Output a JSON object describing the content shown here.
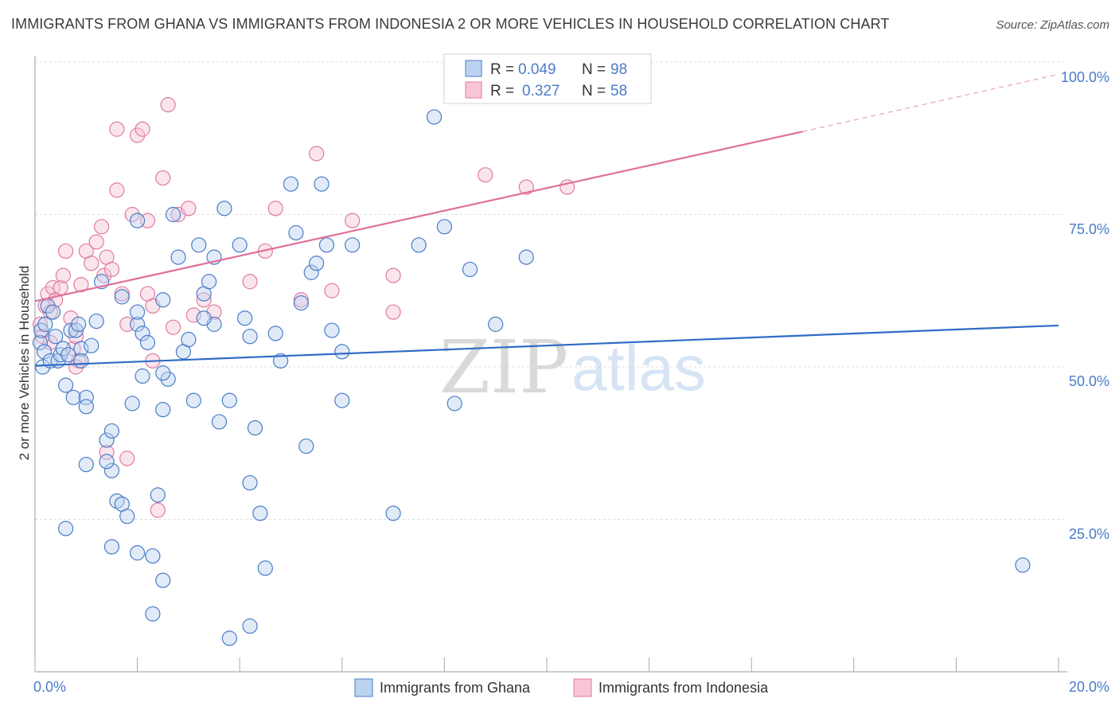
{
  "title": "IMMIGRANTS FROM GHANA VS IMMIGRANTS FROM INDONESIA 2 OR MORE VEHICLES IN HOUSEHOLD CORRELATION CHART",
  "source": "Source: ZipAtlas.com",
  "colors": {
    "ghana": "#4a7cc7",
    "indonesia": "#e07ba0",
    "ghana_fill": "#bcd3f0",
    "indonesia_fill": "#f7c5d6"
  },
  "chart_data": {
    "type": "scatter",
    "xlabel": "",
    "ylabel": "2 or more Vehicles in Household",
    "xlim": [
      0,
      20
    ],
    "ylim": [
      0,
      100
    ],
    "x_tick_labels": [
      "0.0%",
      "20.0%"
    ],
    "y_tick_labels": [
      "25.0%",
      "50.0%",
      "75.0%",
      "100.0%"
    ],
    "watermark": [
      "ZIP",
      "atlas"
    ],
    "legend": [
      {
        "r_label": "R =",
        "r_value": "0.049",
        "n_label": "N =",
        "n_value": "98"
      },
      {
        "r_label": "R =",
        "r_value": "0.327",
        "n_label": "N =",
        "n_value": "58"
      }
    ],
    "series": [
      {
        "name": "Immigrants from Ghana",
        "trend": {
          "x0": 0,
          "y0": 50.2,
          "x1": 20,
          "y1": 56.8
        },
        "points": [
          [
            0.1,
            54
          ],
          [
            0.12,
            56
          ],
          [
            0.15,
            50
          ],
          [
            0.18,
            52.5
          ],
          [
            0.2,
            57
          ],
          [
            0.25,
            60
          ],
          [
            0.3,
            51
          ],
          [
            0.35,
            59
          ],
          [
            0.4,
            55
          ],
          [
            0.45,
            51
          ],
          [
            0.5,
            52
          ],
          [
            0.55,
            53
          ],
          [
            0.6,
            47
          ],
          [
            0.65,
            52
          ],
          [
            0.7,
            56
          ],
          [
            0.75,
            45
          ],
          [
            0.8,
            56
          ],
          [
            0.85,
            57
          ],
          [
            0.9,
            53
          ],
          [
            1.0,
            45
          ],
          [
            1.0,
            34
          ],
          [
            1.1,
            53.5
          ],
          [
            1.2,
            57.5
          ],
          [
            1.4,
            38
          ],
          [
            1.5,
            39.5
          ],
          [
            1.5,
            33
          ],
          [
            1.6,
            28
          ],
          [
            1.7,
            27.5
          ],
          [
            1.7,
            61.5
          ],
          [
            1.8,
            25.5
          ],
          [
            1.9,
            44
          ],
          [
            2.0,
            57
          ],
          [
            2.0,
            59
          ],
          [
            2.1,
            55.5
          ],
          [
            2.1,
            48.5
          ],
          [
            2.2,
            54
          ],
          [
            2.3,
            19
          ],
          [
            2.4,
            29
          ],
          [
            2.5,
            43
          ],
          [
            2.6,
            48
          ],
          [
            2.7,
            75
          ],
          [
            2.8,
            68
          ],
          [
            2.9,
            52.5
          ],
          [
            3.0,
            54.5
          ],
          [
            3.1,
            44.5
          ],
          [
            3.2,
            70
          ],
          [
            3.3,
            62
          ],
          [
            3.4,
            64
          ],
          [
            3.5,
            57
          ],
          [
            3.6,
            41
          ],
          [
            3.7,
            76
          ],
          [
            3.8,
            44.5
          ],
          [
            4.0,
            70
          ],
          [
            4.1,
            58
          ],
          [
            4.2,
            31
          ],
          [
            4.3,
            40
          ],
          [
            4.4,
            26
          ],
          [
            4.5,
            17
          ],
          [
            4.7,
            55.5
          ],
          [
            4.8,
            51
          ],
          [
            5.0,
            80
          ],
          [
            5.1,
            72
          ],
          [
            5.2,
            60.5
          ],
          [
            5.3,
            37
          ],
          [
            5.4,
            65.5
          ],
          [
            5.5,
            67
          ],
          [
            5.6,
            80
          ],
          [
            5.7,
            70
          ],
          [
            5.8,
            56
          ],
          [
            6.0,
            52.5
          ],
          [
            6.2,
            70
          ],
          [
            7.0,
            26
          ],
          [
            7.5,
            70
          ],
          [
            7.8,
            91
          ],
          [
            8.0,
            73
          ],
          [
            8.2,
            44
          ],
          [
            8.5,
            66
          ],
          [
            9.0,
            57
          ],
          [
            9.6,
            68
          ],
          [
            19.3,
            17.5
          ],
          [
            0.6,
            23.5
          ],
          [
            1.0,
            43.5
          ],
          [
            1.5,
            20.5
          ],
          [
            2.0,
            19.5
          ],
          [
            3.5,
            68
          ],
          [
            2.3,
            9.5
          ],
          [
            2.5,
            15
          ],
          [
            3.8,
            5.5
          ],
          [
            4.2,
            7.5
          ],
          [
            1.4,
            34.5
          ],
          [
            0.9,
            51
          ],
          [
            2.5,
            61
          ],
          [
            3.3,
            58
          ],
          [
            4.2,
            55
          ],
          [
            6.0,
            44.5
          ],
          [
            1.3,
            64
          ],
          [
            2.0,
            74
          ],
          [
            2.5,
            49
          ]
        ]
      },
      {
        "name": "Immigrants from Indonesia",
        "trend": {
          "x0": 0,
          "y0": 60.8,
          "x1": 15,
          "y1": 88.6,
          "dash_x1": 20,
          "dash_y1": 98.0
        },
        "points": [
          [
            0.1,
            57
          ],
          [
            0.15,
            55
          ],
          [
            0.2,
            60
          ],
          [
            0.25,
            62
          ],
          [
            0.3,
            59
          ],
          [
            0.35,
            63
          ],
          [
            0.4,
            61
          ],
          [
            0.5,
            63
          ],
          [
            0.55,
            65
          ],
          [
            0.6,
            69
          ],
          [
            0.7,
            58
          ],
          [
            0.75,
            53
          ],
          [
            0.8,
            55
          ],
          [
            0.85,
            51
          ],
          [
            0.9,
            63.5
          ],
          [
            1.0,
            69
          ],
          [
            1.1,
            67
          ],
          [
            1.2,
            70.5
          ],
          [
            1.3,
            73
          ],
          [
            1.35,
            65
          ],
          [
            1.4,
            68
          ],
          [
            1.5,
            66
          ],
          [
            1.6,
            79
          ],
          [
            1.6,
            89
          ],
          [
            1.7,
            62
          ],
          [
            1.8,
            57
          ],
          [
            1.8,
            35
          ],
          [
            1.9,
            75
          ],
          [
            2.0,
            88
          ],
          [
            2.1,
            89
          ],
          [
            2.2,
            74
          ],
          [
            2.3,
            60
          ],
          [
            2.3,
            51
          ],
          [
            2.4,
            26.5
          ],
          [
            2.5,
            81
          ],
          [
            2.6,
            93
          ],
          [
            2.7,
            56.5
          ],
          [
            2.8,
            75
          ],
          [
            3.0,
            76
          ],
          [
            3.1,
            58.5
          ],
          [
            3.3,
            61
          ],
          [
            3.5,
            59
          ],
          [
            4.2,
            64
          ],
          [
            4.5,
            69
          ],
          [
            4.7,
            76
          ],
          [
            5.2,
            61
          ],
          [
            5.5,
            85
          ],
          [
            5.8,
            62.5
          ],
          [
            6.2,
            74
          ],
          [
            7.0,
            65
          ],
          [
            7.0,
            59
          ],
          [
            8.8,
            81.5
          ],
          [
            9.6,
            79.5
          ],
          [
            10.4,
            79.5
          ],
          [
            0.3,
            54
          ],
          [
            1.4,
            36
          ],
          [
            2.2,
            62
          ],
          [
            0.8,
            50
          ]
        ]
      }
    ]
  },
  "bottom_legend": [
    "Immigrants from Ghana",
    "Immigrants from Indonesia"
  ]
}
